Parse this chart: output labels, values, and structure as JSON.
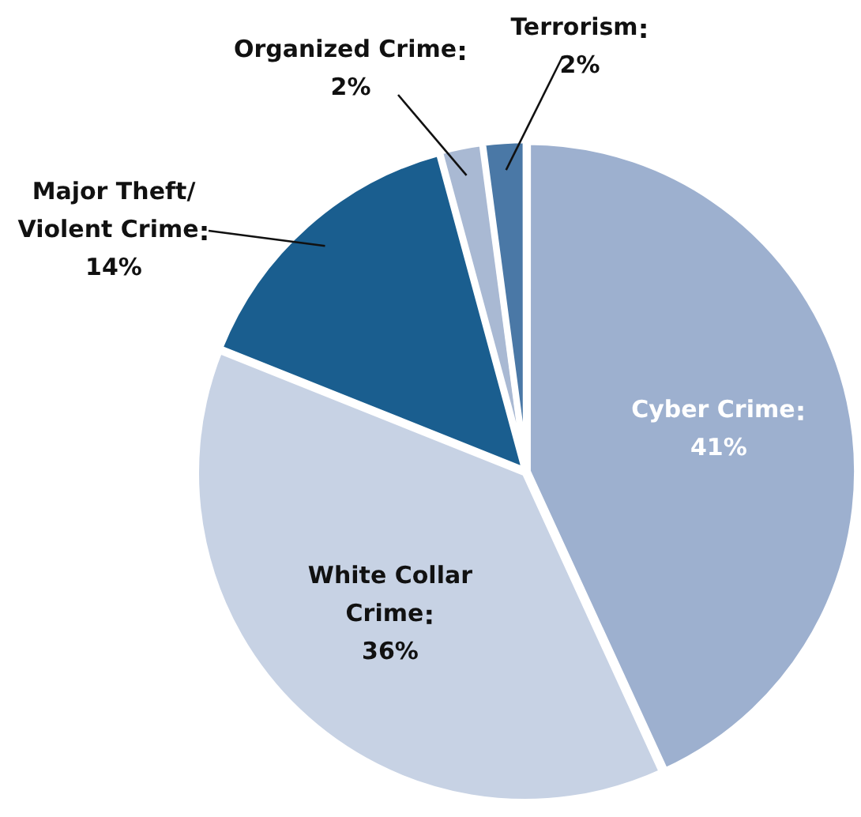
{
  "chart_data": {
    "type": "pie",
    "categories": [
      "Cyber Crime",
      "White Collar Crime",
      "Major Theft/ Violent Crime",
      "Organized Crime",
      "Terrorism"
    ],
    "values": [
      41,
      36,
      14,
      2,
      2
    ],
    "value_labels": [
      "41%",
      "36%",
      "14%",
      "2%",
      "2%"
    ],
    "colors": [
      "#9db0cf",
      "#c7d2e4",
      "#1a5e8f",
      "#a9b9d3",
      "#4a78a6"
    ],
    "legend": false
  }
}
